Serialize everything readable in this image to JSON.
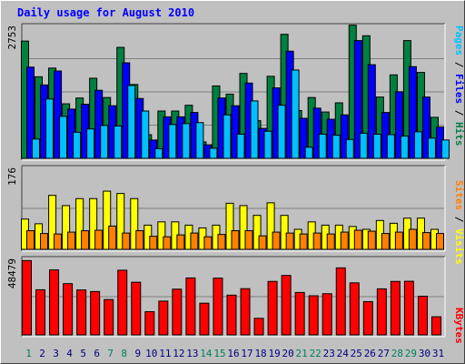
{
  "chart_data": {
    "type": "bar",
    "title": "Daily usage for August 2010",
    "categories": [
      "1",
      "2",
      "3",
      "4",
      "5",
      "6",
      "7",
      "8",
      "9",
      "10",
      "11",
      "12",
      "13",
      "14",
      "15",
      "16",
      "17",
      "18",
      "19",
      "20",
      "21",
      "22",
      "23",
      "24",
      "25",
      "26",
      "27",
      "28",
      "29",
      "30",
      "31"
    ],
    "weekend_days": [
      1,
      7,
      8,
      14,
      15,
      21,
      22,
      28,
      29
    ],
    "panels": [
      {
        "id": "pages-files-hits",
        "max_label": "2753",
        "ymax": 2753,
        "series": [
          {
            "name": "Hits",
            "color": "#008040",
            "values": [
              2430,
              1690,
              1870,
              1130,
              1250,
              1660,
              1260,
              2300,
              1530,
              490,
              980,
              980,
              1100,
              340,
              1500,
              1330,
              1760,
              780,
              1700,
              2570,
              990,
              1260,
              960,
              1150,
              2760,
              2540,
              1270,
              1730,
              2440,
              1780,
              850
            ]
          },
          {
            "name": "Files",
            "color": "#0000ff",
            "values": [
              1890,
              1520,
              1810,
              1020,
              1120,
              1410,
              1090,
              1980,
              1240,
              380,
              860,
              860,
              950,
              280,
              1250,
              1090,
              1560,
              620,
              1460,
              2220,
              830,
              1040,
              810,
              900,
              2440,
              1940,
              950,
              1380,
              1900,
              1270,
              650
            ]
          },
          {
            "name": "Pages",
            "color": "#00c0ff",
            "values": [
              400,
              1230,
              870,
              540,
              610,
              680,
              670,
              1510,
              980,
              200,
              700,
              720,
              740,
              210,
              900,
              500,
              1190,
              560,
              1100,
              1830,
              230,
              500,
              480,
              390,
              520,
              500,
              490,
              460,
              550,
              420,
              380
            ]
          }
        ]
      },
      {
        "id": "sites-visits",
        "max_label": "176",
        "ymax": 176,
        "series": [
          {
            "name": "Visits",
            "color": "#ffff00",
            "values": [
              65,
              55,
              116,
              94,
              109,
              109,
              125,
              120,
              109,
              52,
              59,
              59,
              52,
              46,
              52,
              99,
              94,
              73,
              100,
              73,
              43,
              59,
              52,
              52,
              49,
              43,
              62,
              56,
              67,
              67,
              43
            ]
          },
          {
            "name": "Sites",
            "color": "#ff8000",
            "values": [
              40,
              34,
              33,
              37,
              40,
              41,
              50,
              35,
              40,
              28,
              27,
              31,
              35,
              27,
              32,
              40,
              40,
              29,
              37,
              35,
              33,
              35,
              33,
              37,
              41,
              39,
              34,
              37,
              43,
              36,
              34
            ]
          }
        ]
      },
      {
        "id": "kbytes",
        "max_label": "48479",
        "ymax": 48479,
        "series": [
          {
            "name": "KBytes",
            "color": "#ff0000",
            "values": [
              47100,
              28600,
              41200,
              32500,
              28500,
              27500,
              22400,
              41000,
              33400,
              14700,
              21400,
              29000,
              36100,
              20100,
              36000,
              25200,
              29300,
              10500,
              33900,
              37700,
              26900,
              24800,
              26100,
              42500,
              33000,
              21100,
              29200,
              33900,
              34000,
              24500,
              11500
            ]
          }
        ]
      }
    ],
    "right_labels": {
      "panel1": [
        {
          "text": "Pages",
          "color": "#00c0ff"
        },
        {
          "text": " / ",
          "color": "#000000"
        },
        {
          "text": "Files",
          "color": "#0000ff"
        },
        {
          "text": " / ",
          "color": "#000000"
        },
        {
          "text": "Hits",
          "color": "#008040"
        }
      ],
      "panel2": [
        {
          "text": "Sites",
          "color": "#ff8000"
        },
        {
          "text": " / ",
          "color": "#000000"
        },
        {
          "text": "Visits",
          "color": "#ffff00"
        }
      ],
      "panel3": [
        {
          "text": "KBytes",
          "color": "#ff0000"
        }
      ]
    },
    "colors": {
      "background": "#c0c0c0",
      "title": "#0000ff",
      "weekday_label": "#000080",
      "weekend_label": "#00805c",
      "gridline": "#808080"
    }
  }
}
